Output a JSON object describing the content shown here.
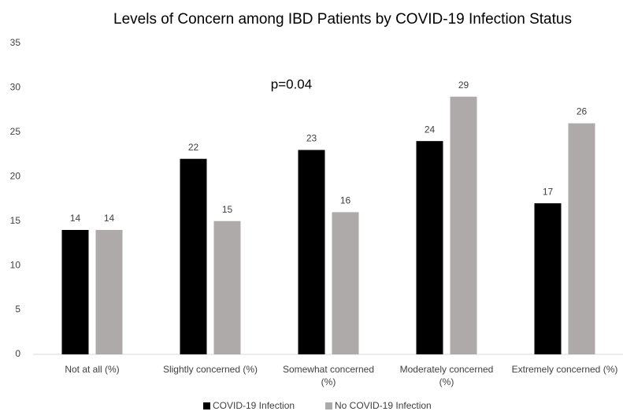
{
  "chart_data": {
    "type": "bar",
    "title": "Levels of Concern among IBD Patients by COVID-19 Infection Status",
    "annotation": "p=0.04",
    "categories": [
      "Not at all (%)",
      "Slightly concerned (%)",
      "Somewhat concerned (%)",
      "Moderately concerned (%)",
      "Extremely concerned (%)"
    ],
    "series": [
      {
        "name": "COVID-19 Infection",
        "color": "#000000",
        "values": [
          14,
          22,
          23,
          24,
          17
        ]
      },
      {
        "name": "No COVID-19 Infection",
        "color": "#aeaaaa",
        "values": [
          14,
          15,
          16,
          29,
          26
        ]
      }
    ],
    "ylim": [
      0,
      35
    ],
    "yticks": [
      0,
      5,
      10,
      15,
      20,
      25,
      30,
      35
    ],
    "grid": false,
    "legend": "bottom"
  }
}
